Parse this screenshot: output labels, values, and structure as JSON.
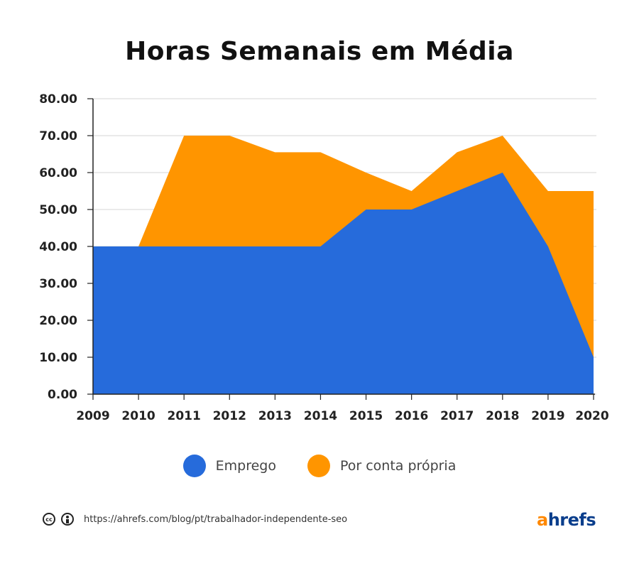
{
  "chart_data": {
    "type": "area",
    "title": "Horas Semanais em Média",
    "x": [
      "2009",
      "2010",
      "2011",
      "2012",
      "2013",
      "2014",
      "2015",
      "2016",
      "2017",
      "2018",
      "2019",
      "2020"
    ],
    "yticks": [
      "0.00",
      "10.00",
      "20.00",
      "30.00",
      "40.00",
      "50.00",
      "60.00",
      "70.00",
      "80.00"
    ],
    "ylim": [
      0,
      80
    ],
    "stacked": false,
    "grid": true,
    "legend_position": "bottom",
    "series": [
      {
        "name": "Por conta própria",
        "color": "#ff9500",
        "values": [
          40,
          40,
          70,
          70,
          65.5,
          65.5,
          60,
          55,
          65.5,
          70,
          55,
          55
        ]
      },
      {
        "name": "Emprego",
        "color": "#266bdb",
        "values": [
          40,
          40,
          40,
          40,
          40,
          40,
          50,
          50,
          55,
          60,
          40,
          10
        ]
      }
    ]
  },
  "legend": [
    {
      "label": "Emprego",
      "color": "#266bdb"
    },
    {
      "label": "Por conta própria",
      "color": "#ff9500"
    }
  ],
  "footer": {
    "cc_icon": "cc-icon",
    "by_icon": "attribution-icon",
    "source_url": "https://ahrefs.com/blog/pt/trabalhador-independente-seo",
    "brand_a": "a",
    "brand_rest": "hrefs"
  }
}
